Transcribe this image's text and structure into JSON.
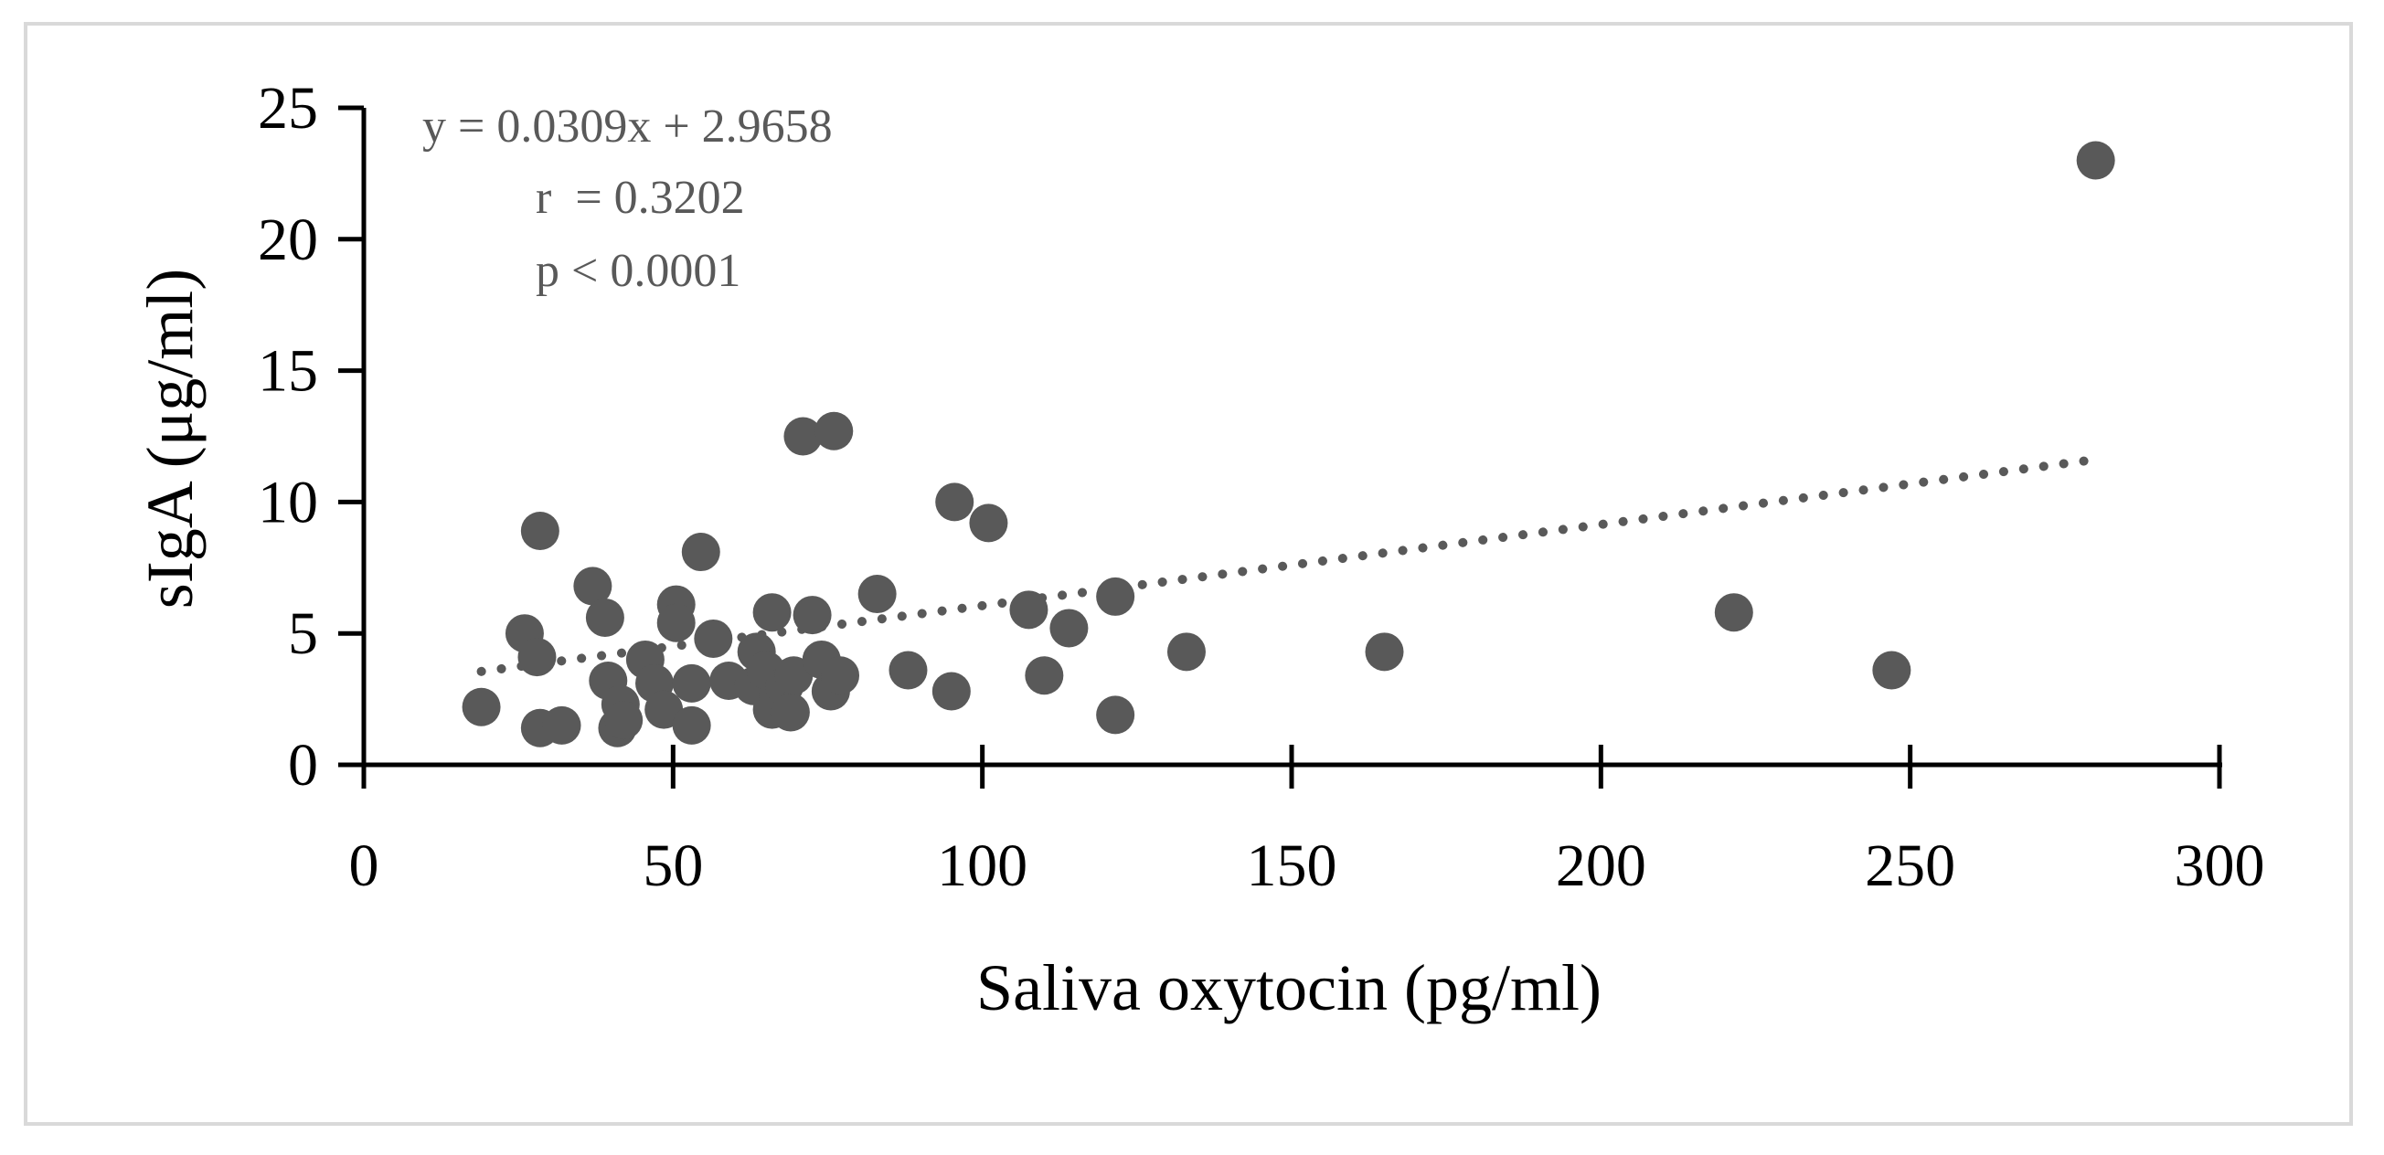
{
  "chart_data": {
    "type": "scatter",
    "title": "",
    "xlabel": "Saliva oxytocin (pg/ml)",
    "ylabel": "sIgA (μg/ml)",
    "xlim": [
      0,
      300
    ],
    "ylim": [
      0,
      25
    ],
    "x_ticks": [
      "0",
      "50",
      "100",
      "150",
      "200",
      "250",
      "300"
    ],
    "y_ticks": [
      "0",
      "5",
      "10",
      "15",
      "20",
      "25"
    ],
    "grid": false,
    "legend": "none",
    "marker_color": "#595959",
    "annotations": [
      "y = 0.0309x + 2.9658",
      "r  = 0.3202",
      "p < 0.0001"
    ],
    "trendline": {
      "style": "dotted",
      "slope": 0.0309,
      "intercept": 2.9658,
      "x_range": [
        19,
        280
      ]
    },
    "points": [
      {
        "x": 19,
        "y": 2.2
      },
      {
        "x": 26,
        "y": 5.0
      },
      {
        "x": 28,
        "y": 4.1
      },
      {
        "x": 28.5,
        "y": 1.4
      },
      {
        "x": 28.5,
        "y": 8.9
      },
      {
        "x": 32,
        "y": 1.5
      },
      {
        "x": 37,
        "y": 6.8
      },
      {
        "x": 39,
        "y": 5.6
      },
      {
        "x": 39.5,
        "y": 3.2
      },
      {
        "x": 41,
        "y": 1.4
      },
      {
        "x": 41.5,
        "y": 2.3
      },
      {
        "x": 42,
        "y": 1.7
      },
      {
        "x": 45.5,
        "y": 4.0
      },
      {
        "x": 47,
        "y": 3.1
      },
      {
        "x": 48.5,
        "y": 2.1
      },
      {
        "x": 50.5,
        "y": 6.1
      },
      {
        "x": 50.5,
        "y": 5.4
      },
      {
        "x": 53,
        "y": 1.5
      },
      {
        "x": 53,
        "y": 3.1
      },
      {
        "x": 54.5,
        "y": 8.1
      },
      {
        "x": 56.5,
        "y": 4.8
      },
      {
        "x": 59,
        "y": 3.2
      },
      {
        "x": 63,
        "y": 3.0
      },
      {
        "x": 63.5,
        "y": 4.3
      },
      {
        "x": 65,
        "y": 3.6
      },
      {
        "x": 66,
        "y": 5.8
      },
      {
        "x": 66,
        "y": 2.1
      },
      {
        "x": 67,
        "y": 2.6
      },
      {
        "x": 68,
        "y": 3.0
      },
      {
        "x": 69,
        "y": 2.0
      },
      {
        "x": 69.5,
        "y": 3.4
      },
      {
        "x": 71,
        "y": 12.5
      },
      {
        "x": 72.5,
        "y": 5.7
      },
      {
        "x": 74,
        "y": 4.0
      },
      {
        "x": 75.5,
        "y": 2.8
      },
      {
        "x": 76,
        "y": 12.7
      },
      {
        "x": 77,
        "y": 3.4
      },
      {
        "x": 83,
        "y": 6.5
      },
      {
        "x": 88,
        "y": 3.6
      },
      {
        "x": 95,
        "y": 2.8
      },
      {
        "x": 95.5,
        "y": 10.0
      },
      {
        "x": 101,
        "y": 9.2
      },
      {
        "x": 107.5,
        "y": 5.9
      },
      {
        "x": 110,
        "y": 3.4
      },
      {
        "x": 114,
        "y": 5.2
      },
      {
        "x": 121.5,
        "y": 6.4
      },
      {
        "x": 121.5,
        "y": 1.9
      },
      {
        "x": 133,
        "y": 4.3
      },
      {
        "x": 165,
        "y": 4.3
      },
      {
        "x": 221.5,
        "y": 5.8
      },
      {
        "x": 247,
        "y": 3.6
      },
      {
        "x": 280,
        "y": 23.0
      }
    ]
  }
}
